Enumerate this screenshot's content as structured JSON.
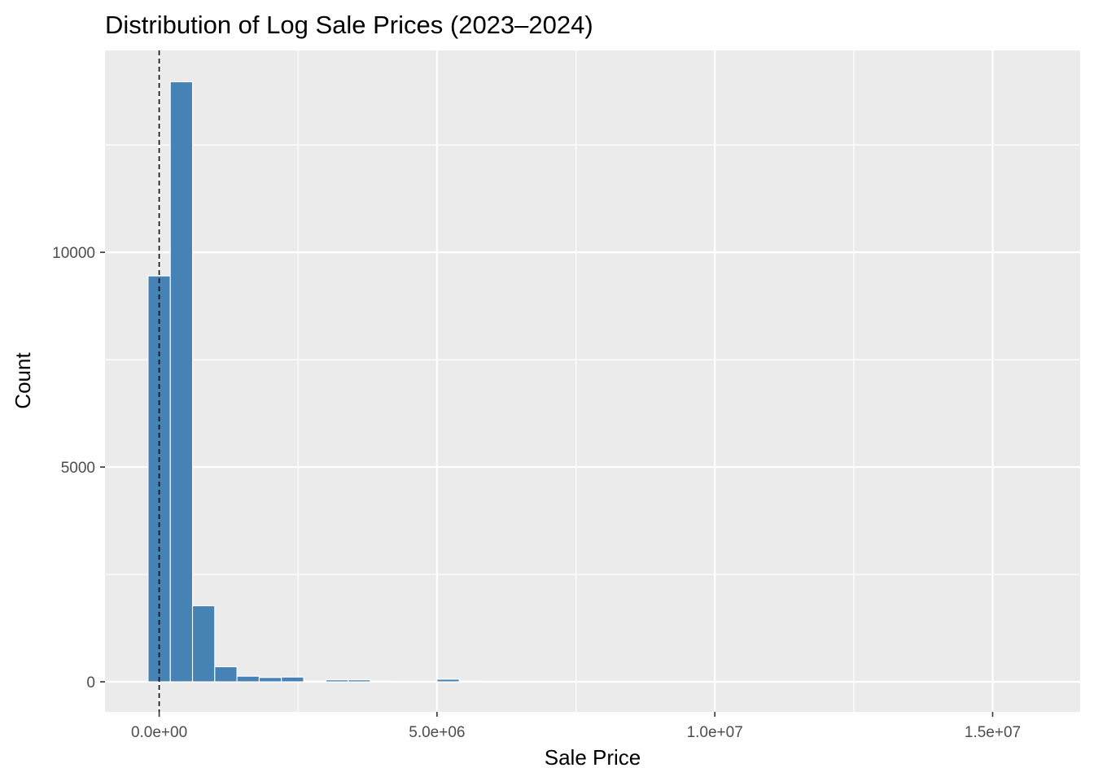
{
  "chart_data": {
    "type": "bar",
    "title": "Distribution of Log Sale Prices (2023–2024)",
    "xlabel": "Sale Price",
    "ylabel": "Count",
    "bin_width": 400000,
    "bins": [
      {
        "x0": -200000,
        "x1": 200000,
        "count": 9450
      },
      {
        "x0": 200000,
        "x1": 600000,
        "count": 13970
      },
      {
        "x0": 600000,
        "x1": 1000000,
        "count": 1770
      },
      {
        "x0": 1000000,
        "x1": 1400000,
        "count": 350
      },
      {
        "x0": 1400000,
        "x1": 1800000,
        "count": 130
      },
      {
        "x0": 1800000,
        "x1": 2200000,
        "count": 100
      },
      {
        "x0": 2200000,
        "x1": 2600000,
        "count": 110
      },
      {
        "x0": 2600000,
        "x1": 3000000,
        "count": 20
      },
      {
        "x0": 3000000,
        "x1": 3400000,
        "count": 45
      },
      {
        "x0": 3400000,
        "x1": 3800000,
        "count": 45
      },
      {
        "x0": 3800000,
        "x1": 4200000,
        "count": 15
      },
      {
        "x0": 4200000,
        "x1": 4600000,
        "count": 10
      },
      {
        "x0": 4600000,
        "x1": 5000000,
        "count": 10
      },
      {
        "x0": 5000000,
        "x1": 5400000,
        "count": 60
      },
      {
        "x0": 5400000,
        "x1": 5800000,
        "count": 15
      },
      {
        "x0": 5800000,
        "x1": 6200000,
        "count": 10
      },
      {
        "x0": 6200000,
        "x1": 6600000,
        "count": 10
      },
      {
        "x0": 6600000,
        "x1": 7000000,
        "count": 5
      },
      {
        "x0": 7000000,
        "x1": 7400000,
        "count": 5
      },
      {
        "x0": 7400000,
        "x1": 7800000,
        "count": 5
      },
      {
        "x0": 7800000,
        "x1": 8200000,
        "count": 5
      },
      {
        "x0": 8200000,
        "x1": 8600000,
        "count": 3
      },
      {
        "x0": 8600000,
        "x1": 9000000,
        "count": 3
      },
      {
        "x0": 9000000,
        "x1": 9400000,
        "count": 5
      },
      {
        "x0": 9400000,
        "x1": 9800000,
        "count": 3
      },
      {
        "x0": 14800000,
        "x1": 15200000,
        "count": 2
      },
      {
        "x0": 15200000,
        "x1": 15600000,
        "count": 5
      }
    ],
    "x_ticks": [
      {
        "value": 0,
        "label": "0.0e+00"
      },
      {
        "value": 5000000,
        "label": "5.0e+06"
      },
      {
        "value": 10000000,
        "label": "1.0e+07"
      },
      {
        "value": 15000000,
        "label": "1.5e+07"
      }
    ],
    "y_ticks": [
      {
        "value": 0,
        "label": "0"
      },
      {
        "value": 5000,
        "label": "5000"
      },
      {
        "value": 10000,
        "label": "10000"
      }
    ],
    "x_minor_ticks": [
      2500000,
      7500000,
      12500000
    ],
    "y_minor_ticks": [
      2500,
      7500,
      12500
    ],
    "xlim": [
      -975000,
      16575000
    ],
    "ylim": [
      -700,
      14700
    ],
    "reference_line": {
      "x": 0,
      "style": "dashed",
      "color": "#000000"
    },
    "bar_color": "#4682b4",
    "bar_outline": "#ffffff",
    "panel_background": "#ebebeb",
    "grid": true,
    "legend": "none"
  }
}
